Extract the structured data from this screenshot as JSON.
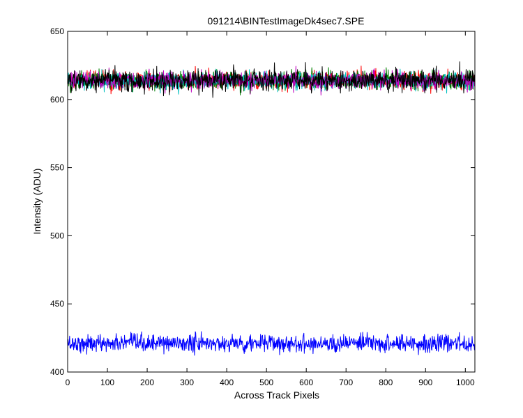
{
  "chart_data": {
    "type": "line",
    "title": "091214\\BINTestImageDk4sec7.SPE",
    "xlabel": "Across Track Pixels",
    "ylabel": "Intensity (ADU)",
    "xlim": [
      0,
      1024
    ],
    "ylim": [
      400,
      650
    ],
    "xticks": [
      0,
      100,
      200,
      300,
      400,
      500,
      600,
      700,
      800,
      900,
      1000
    ],
    "yticks": [
      400,
      450,
      500,
      550,
      600,
      650
    ],
    "grid": false,
    "legend": "none",
    "series": [
      {
        "color": "#0000ff",
        "points": 1024,
        "mean": 421,
        "range": [
          407,
          434
        ]
      },
      {
        "color": "#ff0000",
        "points": 1024,
        "mean": 614,
        "range": [
          601,
          628
        ]
      },
      {
        "color": "#008000",
        "points": 1024,
        "mean": 614,
        "range": [
          601,
          628
        ]
      },
      {
        "color": "#00bfbf",
        "points": 1024,
        "mean": 614,
        "range": [
          601,
          628
        ]
      },
      {
        "color": "#bf00bf",
        "points": 1024,
        "mean": 614,
        "range": [
          601,
          628
        ]
      },
      {
        "color": "#000000",
        "points": 1024,
        "mean": 614,
        "range": [
          600,
          633
        ]
      }
    ]
  }
}
